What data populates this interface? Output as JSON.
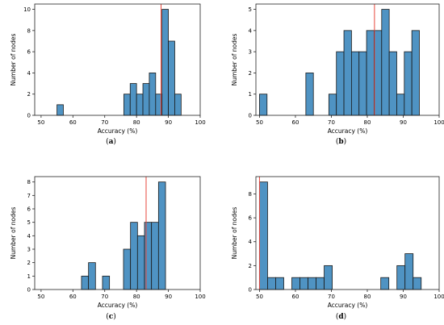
{
  "chart_data": [
    {
      "type": "bar",
      "panel": "a",
      "caption": "(a)",
      "xlabel": "Accuracy (%)",
      "ylabel": "Number of nodes",
      "xlim": [
        48,
        100
      ],
      "ylim": [
        0,
        10.5
      ],
      "xticks": [
        50,
        60,
        70,
        80,
        90,
        100
      ],
      "yticks": [
        0,
        2,
        4,
        6,
        8,
        10
      ],
      "mean_line": 87.7,
      "bin_width": 2.0,
      "bars": [
        {
          "x0": 55,
          "value": 1
        },
        {
          "x0": 76,
          "value": 2
        },
        {
          "x0": 78,
          "value": 3
        },
        {
          "x0": 80,
          "value": 2
        },
        {
          "x0": 82,
          "value": 3
        },
        {
          "x0": 84,
          "value": 4
        },
        {
          "x0": 86,
          "value": 2
        },
        {
          "x0": 88,
          "value": 10
        },
        {
          "x0": 90,
          "value": 7
        },
        {
          "x0": 92,
          "value": 2
        }
      ]
    },
    {
      "type": "bar",
      "panel": "b",
      "caption": "(b)",
      "xlabel": "Accuracy (%)",
      "ylabel": "Number of nodes",
      "xlim": [
        49,
        100
      ],
      "ylim": [
        0,
        5.25
      ],
      "xticks": [
        50,
        60,
        70,
        80,
        90,
        100
      ],
      "yticks": [
        0,
        1,
        2,
        3,
        4,
        5
      ],
      "mean_line": 82.0,
      "bin_width": 2.1,
      "bars": [
        {
          "x0": 50.0,
          "value": 1
        },
        {
          "x0": 62.9,
          "value": 2
        },
        {
          "x0": 69.3,
          "value": 1
        },
        {
          "x0": 71.4,
          "value": 3
        },
        {
          "x0": 73.5,
          "value": 4
        },
        {
          "x0": 75.6,
          "value": 3
        },
        {
          "x0": 77.7,
          "value": 3
        },
        {
          "x0": 79.8,
          "value": 4
        },
        {
          "x0": 81.9,
          "value": 4
        },
        {
          "x0": 84.0,
          "value": 5
        },
        {
          "x0": 86.1,
          "value": 3
        },
        {
          "x0": 88.2,
          "value": 1
        },
        {
          "x0": 90.3,
          "value": 3
        },
        {
          "x0": 92.4,
          "value": 4
        }
      ]
    },
    {
      "type": "bar",
      "panel": "c",
      "caption": "(c)",
      "xlabel": "Accuracy (%)",
      "ylabel": "Number of nodes",
      "xlim": [
        48,
        100
      ],
      "ylim": [
        0,
        8.4
      ],
      "xticks": [
        50,
        60,
        70,
        80,
        90,
        100
      ],
      "yticks": [
        0,
        1,
        2,
        3,
        4,
        5,
        6,
        7,
        8
      ],
      "mean_line": 83.0,
      "bin_width": 2.2,
      "bars": [
        {
          "x0": 62.7,
          "value": 1
        },
        {
          "x0": 64.9,
          "value": 2
        },
        {
          "x0": 69.3,
          "value": 1
        },
        {
          "x0": 75.9,
          "value": 3
        },
        {
          "x0": 78.1,
          "value": 5
        },
        {
          "x0": 80.3,
          "value": 4
        },
        {
          "x0": 82.5,
          "value": 5
        },
        {
          "x0": 84.7,
          "value": 5
        },
        {
          "x0": 86.9,
          "value": 8
        }
      ]
    },
    {
      "type": "bar",
      "panel": "d",
      "caption": "(d)",
      "xlabel": "Accuracy (%)",
      "ylabel": "Number of nodes",
      "xlim": [
        49,
        100
      ],
      "ylim": [
        0,
        9.45
      ],
      "xticks": [
        50,
        60,
        70,
        80,
        90,
        100
      ],
      "yticks": [
        0,
        2,
        4,
        6,
        8
      ],
      "mean_line": 50.0,
      "bin_width": 2.25,
      "bars": [
        {
          "x0": 50.0,
          "value": 9
        },
        {
          "x0": 52.25,
          "value": 1
        },
        {
          "x0": 54.5,
          "value": 1
        },
        {
          "x0": 59.0,
          "value": 1
        },
        {
          "x0": 61.25,
          "value": 1
        },
        {
          "x0": 63.5,
          "value": 1
        },
        {
          "x0": 65.75,
          "value": 1
        },
        {
          "x0": 68.0,
          "value": 2
        },
        {
          "x0": 83.75,
          "value": 1
        },
        {
          "x0": 88.25,
          "value": 2
        },
        {
          "x0": 90.5,
          "value": 3
        },
        {
          "x0": 92.75,
          "value": 1
        }
      ]
    }
  ],
  "colors": {
    "bar_fill": "#4f93c3",
    "bar_edge": "#1a1a1a",
    "mean_line": "#e8473c"
  }
}
